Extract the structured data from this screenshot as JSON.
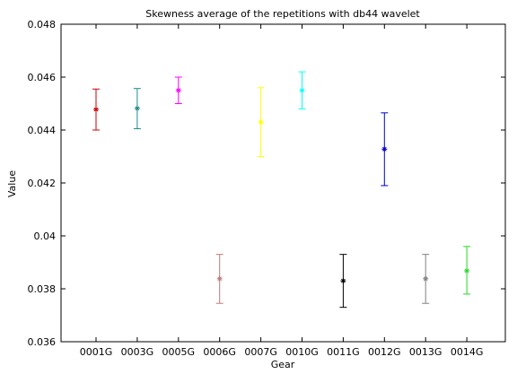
{
  "chart_data": {
    "type": "errorbar",
    "title": "Skewness average of the repetitions with db44 wavelet",
    "xlabel": "Gear",
    "ylabel": "Value",
    "ylim": [
      0.036,
      0.048
    ],
    "yticks": [
      0.036,
      0.038,
      0.04,
      0.042,
      0.044,
      0.046,
      0.048
    ],
    "ytick_labels": [
      "0.036",
      "0.038",
      "0.04",
      "0.042",
      "0.044",
      "0.046",
      "0.048"
    ],
    "grid": false,
    "categories": [
      "0001G",
      "0003G",
      "0005G",
      "0006G",
      "0007G",
      "0010G",
      "0011G",
      "0012G",
      "0013G",
      "0014G"
    ],
    "points": [
      {
        "category": "0001G",
        "mean": 0.04478,
        "low": 0.044,
        "high": 0.04555,
        "color": "#cc0000"
      },
      {
        "category": "0003G",
        "mean": 0.04482,
        "low": 0.04405,
        "high": 0.04557,
        "color": "#1f8a8a"
      },
      {
        "category": "0005G",
        "mean": 0.0455,
        "low": 0.045,
        "high": 0.046,
        "color": "#ff00ff"
      },
      {
        "category": "0006G",
        "mean": 0.03838,
        "low": 0.03745,
        "high": 0.0393,
        "color": "#c07a7a"
      },
      {
        "category": "0007G",
        "mean": 0.0443,
        "low": 0.043,
        "high": 0.0456,
        "color": "#ffff00"
      },
      {
        "category": "0010G",
        "mean": 0.0455,
        "low": 0.0448,
        "high": 0.0462,
        "color": "#00ffff"
      },
      {
        "category": "0011G",
        "mean": 0.0383,
        "low": 0.0373,
        "high": 0.0393,
        "color": "#000000"
      },
      {
        "category": "0012G",
        "mean": 0.04328,
        "low": 0.0419,
        "high": 0.04465,
        "color": "#0000cc"
      },
      {
        "category": "0013G",
        "mean": 0.03838,
        "low": 0.03745,
        "high": 0.0393,
        "color": "#808080"
      },
      {
        "category": "0014G",
        "mean": 0.03868,
        "low": 0.0378,
        "high": 0.0396,
        "color": "#22dd22"
      }
    ]
  }
}
